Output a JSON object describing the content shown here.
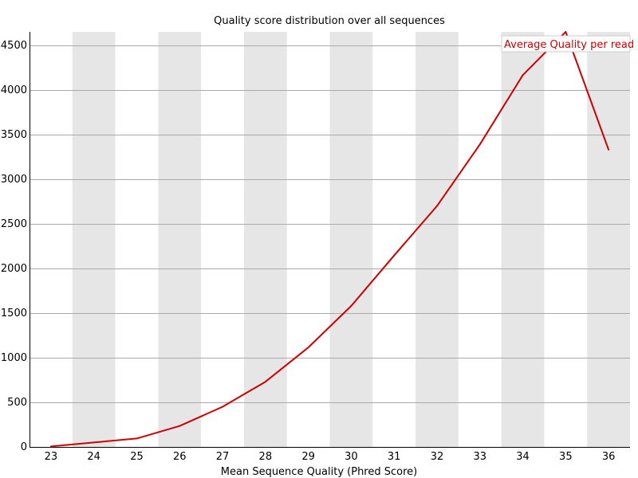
{
  "chart_data": {
    "type": "line",
    "title": "Quality score distribution over all sequences",
    "xlabel": "Mean Sequence Quality (Phred Score)",
    "ylabel": "",
    "x": [
      23,
      24,
      25,
      26,
      27,
      28,
      29,
      30,
      31,
      32,
      33,
      34,
      35,
      36
    ],
    "xticks": [
      "23",
      "24",
      "25",
      "26",
      "27",
      "28",
      "29",
      "30",
      "31",
      "32",
      "33",
      "34",
      "35",
      "36"
    ],
    "yticks": [
      "0",
      "500",
      "1000",
      "1500",
      "2000",
      "2500",
      "3000",
      "3500",
      "4000",
      "4500"
    ],
    "ylim": [
      0,
      4650
    ],
    "grid": true,
    "legend_position": "top-right",
    "series": [
      {
        "name": "Average Quality per read",
        "color": "#cc0000",
        "values": [
          5,
          50,
          95,
          235,
          450,
          730,
          1115,
          1580,
          2145,
          2700,
          3390,
          4165,
          4650,
          3330
        ]
      }
    ]
  }
}
